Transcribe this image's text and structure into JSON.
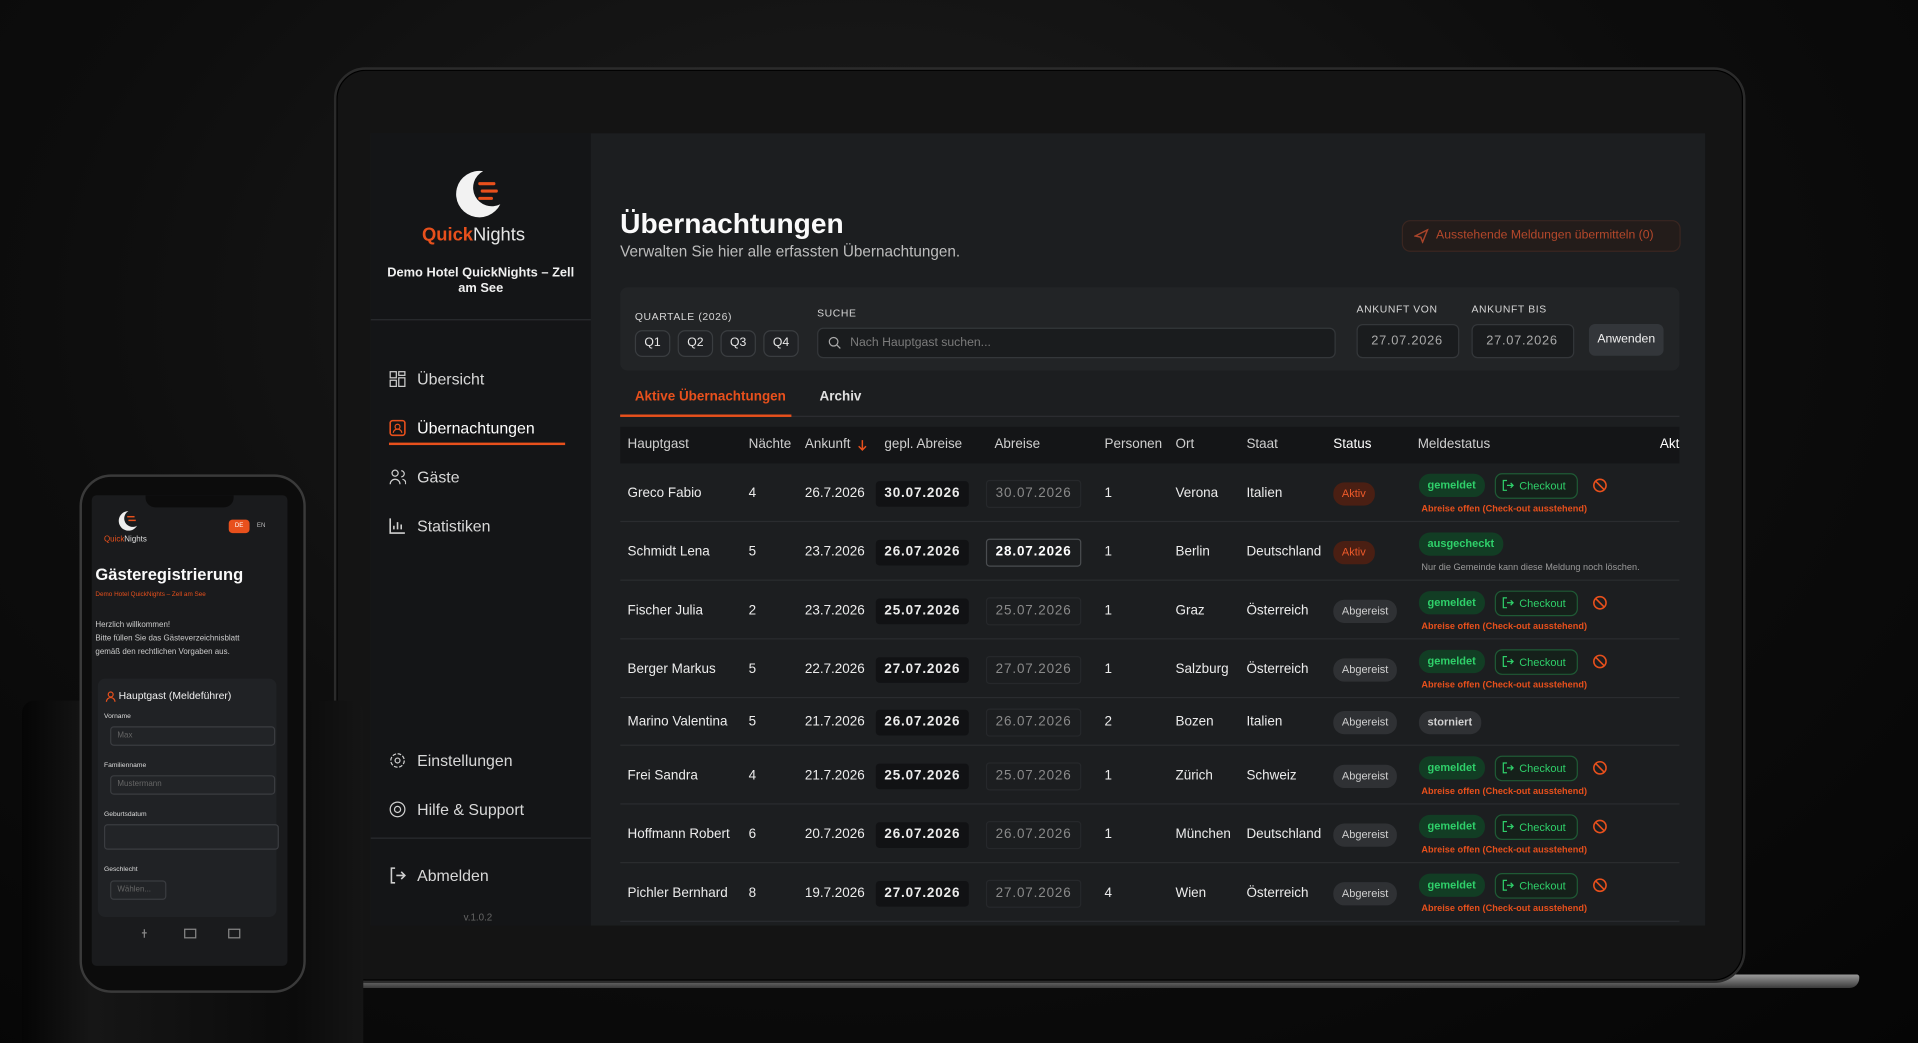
{
  "phone": {
    "brand_1": "Quick",
    "brand_2": "Nights",
    "lang": [
      "DE",
      "EN"
    ],
    "title": "Gästeregistrierung",
    "hotel": "Demo Hotel QuickNights – Zell am See",
    "intro": [
      "Herzlich willkommen!",
      "Bitte füllen Sie das Gästeverzeichnisblatt",
      "gemäß den rechtlichen Vorgaben aus."
    ],
    "section": "Hauptgast (Meldeführer)",
    "fields": [
      {
        "label": "Vorname",
        "placeholder": "Max"
      },
      {
        "label": "Familienname",
        "placeholder": "Mustermann"
      },
      {
        "label": "Geburtsdatum"
      },
      {
        "label": "Geschlecht",
        "placeholder": "Wählen..."
      }
    ]
  },
  "sidebar": {
    "brand_1": "Quick",
    "brand_2": "Nights",
    "hotel": "Demo Hotel QuickNights – Zell am See",
    "nav": [
      "Übersicht",
      "Übernachtungen",
      "Gäste",
      "Statistiken"
    ],
    "footer_nav": [
      "Einstellungen",
      "Hilfe & Support"
    ],
    "logout": "Abmelden",
    "version": "v.1.0.2"
  },
  "header": {
    "title": "Übernachtungen",
    "subtitle": "Verwalten Sie hier alle erfassten Übernachtungen.",
    "submit_button": "Ausstehende Meldungen übermitteln (0)"
  },
  "filters": {
    "quarters_label": "QUARTALE (2026)",
    "quarters": [
      "Q1",
      "Q2",
      "Q3",
      "Q4"
    ],
    "search_label": "SUCHE",
    "search_placeholder": "Nach Hauptgast suchen...",
    "from_label": "ANKUNFT VON",
    "from": "27.07.2026",
    "to_label": "ANKUNFT BIS",
    "to": "27.07.2026",
    "apply": "Anwenden"
  },
  "tabs": [
    "Aktive Übernachtungen",
    "Archiv"
  ],
  "table": {
    "columns": [
      "Hauptgast",
      "Nächte",
      "Ankunft",
      "gepl. Abreise",
      "Abreise",
      "Personen",
      "Ort",
      "Staat",
      "Status",
      "Meldestatus",
      "Akt"
    ],
    "rows": [
      {
        "guest": "Greco Fabio",
        "nights": 4,
        "arrival": "26.7.2026",
        "planned_departure": "30.07.2026",
        "departure": "30.07.2026",
        "persons": 1,
        "city": "Verona",
        "country": "Italien",
        "status": "Aktiv",
        "report": "gemeldet",
        "action": "Checkout",
        "note": "Abreise offen (Check-out ausstehend)"
      },
      {
        "guest": "Schmidt Lena",
        "nights": 5,
        "arrival": "23.7.2026",
        "planned_departure": "26.07.2026",
        "departure": "28.07.2026",
        "persons": 1,
        "city": "Berlin",
        "country": "Deutschland",
        "status": "Aktiv",
        "report": "ausgecheckt",
        "note": "Nur die Gemeinde kann diese Meldung noch löschen."
      },
      {
        "guest": "Fischer Julia",
        "nights": 2,
        "arrival": "23.7.2026",
        "planned_departure": "25.07.2026",
        "departure": "25.07.2026",
        "persons": 1,
        "city": "Graz",
        "country": "Österreich",
        "status": "Abgereist",
        "report": "gemeldet",
        "action": "Checkout",
        "note": "Abreise offen (Check-out ausstehend)"
      },
      {
        "guest": "Berger Markus",
        "nights": 5,
        "arrival": "22.7.2026",
        "planned_departure": "27.07.2026",
        "departure": "27.07.2026",
        "persons": 1,
        "city": "Salzburg",
        "country": "Österreich",
        "status": "Abgereist",
        "report": "gemeldet",
        "action": "Checkout",
        "note": "Abreise offen (Check-out ausstehend)"
      },
      {
        "guest": "Marino Valentina",
        "nights": 5,
        "arrival": "21.7.2026",
        "planned_departure": "26.07.2026",
        "departure": "26.07.2026",
        "persons": 2,
        "city": "Bozen",
        "country": "Italien",
        "status": "Abgereist",
        "report": "storniert"
      },
      {
        "guest": "Frei Sandra",
        "nights": 4,
        "arrival": "21.7.2026",
        "planned_departure": "25.07.2026",
        "departure": "25.07.2026",
        "persons": 1,
        "city": "Zürich",
        "country": "Schweiz",
        "status": "Abgereist",
        "report": "gemeldet",
        "action": "Checkout",
        "note": "Abreise offen (Check-out ausstehend)"
      },
      {
        "guest": "Hoffmann Robert",
        "nights": 6,
        "arrival": "20.7.2026",
        "planned_departure": "26.07.2026",
        "departure": "26.07.2026",
        "persons": 1,
        "city": "München",
        "country": "Deutschland",
        "status": "Abgereist",
        "report": "gemeldet",
        "action": "Checkout",
        "note": "Abreise offen (Check-out ausstehend)"
      },
      {
        "guest": "Pichler Bernhard",
        "nights": 8,
        "arrival": "19.7.2026",
        "planned_departure": "27.07.2026",
        "departure": "27.07.2026",
        "persons": 4,
        "city": "Wien",
        "country": "Österreich",
        "status": "Abgereist",
        "report": "gemeldet",
        "action": "Checkout",
        "note": "Abreise offen (Check-out ausstehend)"
      }
    ]
  }
}
